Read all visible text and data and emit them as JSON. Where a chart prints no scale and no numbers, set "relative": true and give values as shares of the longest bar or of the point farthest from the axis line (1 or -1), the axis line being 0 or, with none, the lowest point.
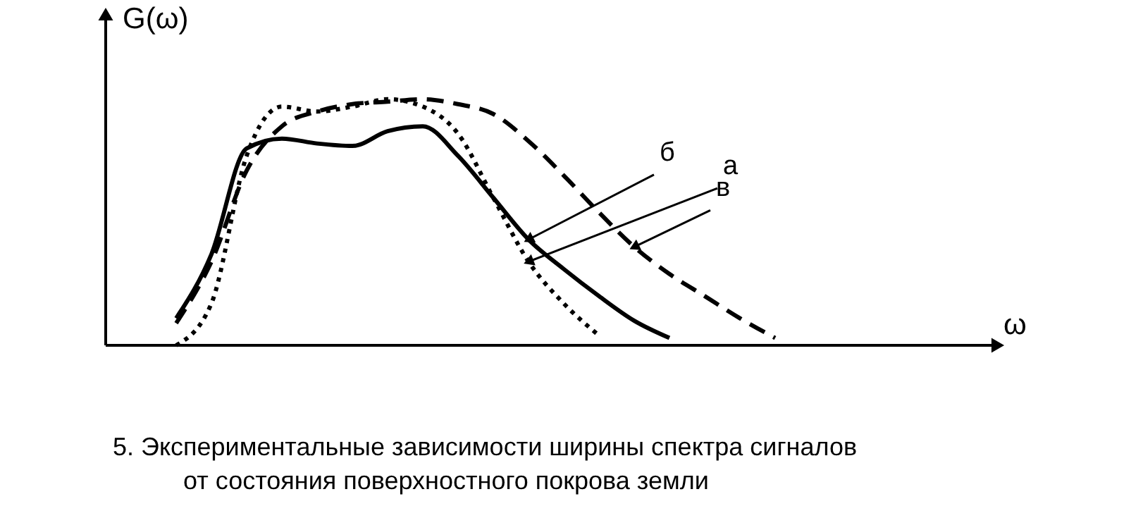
{
  "chart_data": {
    "type": "line",
    "relative": true,
    "ylabel": "G(ω)",
    "xlabel": "ω",
    "categories": [
      null,
      null,
      null,
      null,
      null,
      null,
      null,
      null,
      null,
      null,
      null,
      null,
      null,
      null,
      null,
      null,
      null,
      null,
      null,
      null,
      null,
      null,
      null,
      null,
      null,
      null
    ],
    "series": [
      {
        "name": "б",
        "color": "#000000",
        "line_style": "solid",
        "values": [
          null,
          null,
          0.11,
          0.37,
          0.8,
          0.84,
          0.82,
          0.81,
          0.87,
          0.89,
          0.77,
          0.6,
          0.43,
          0.31,
          0.2,
          0.1,
          0.03,
          null,
          null,
          null,
          null,
          null,
          null,
          null,
          null,
          null
        ]
      },
      {
        "name": "а",
        "color": "#000000",
        "line_style": "dotted",
        "values": [
          null,
          null,
          0.0,
          0.17,
          0.77,
          0.97,
          0.95,
          0.97,
          1.0,
          0.97,
          0.86,
          0.6,
          0.34,
          0.17,
          0.04,
          null,
          null,
          null,
          null,
          null,
          null,
          null,
          null,
          null,
          null,
          null
        ]
      },
      {
        "name": "в",
        "color": "#000000",
        "line_style": "dashed",
        "values": [
          null,
          null,
          0.09,
          0.34,
          0.71,
          0.89,
          0.95,
          0.98,
          0.99,
          1.0,
          0.98,
          0.94,
          0.83,
          0.69,
          0.54,
          0.4,
          0.29,
          0.2,
          0.11,
          0.03,
          null,
          null,
          null,
          null,
          null,
          null
        ]
      }
    ],
    "annotations": [
      "5. Экспериментальные зависимости ширины спектра сигналов",
      "от состояния поверхностного покрова земли"
    ]
  }
}
